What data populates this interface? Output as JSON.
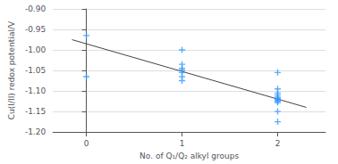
{
  "chart_data": {
    "type": "scatter",
    "xlabel": "No. of Q₁/Q₂ alkyl groups",
    "ylabel": "Cu(I/II) redox potential/V",
    "xlim": [
      -0.35,
      2.5
    ],
    "ylim": [
      -1.2,
      -0.9
    ],
    "xticks": [
      0,
      1,
      2
    ],
    "yticks": [
      {
        "value": -1.2,
        "label": "-1.20"
      },
      {
        "value": -1.15,
        "label": "-1.15"
      },
      {
        "value": -1.1,
        "label": "-1.10"
      },
      {
        "value": -1.05,
        "label": "-1.05"
      },
      {
        "value": -1.0,
        "label": "-1.00"
      },
      {
        "value": -0.95,
        "label": "-0.95"
      },
      {
        "value": -0.9,
        "label": "-0.90"
      }
    ],
    "grid": "y",
    "series": [
      {
        "type": "scatter",
        "color": "#3399ff",
        "marker": "+",
        "x": [
          0,
          0,
          1,
          1,
          1,
          1,
          1,
          1,
          1,
          2,
          2,
          2,
          2,
          2,
          2,
          2,
          2,
          2,
          2,
          2,
          2
        ],
        "values": [
          -0.965,
          -1.065,
          -1.0,
          -1.035,
          -1.045,
          -1.05,
          -1.055,
          -1.065,
          -1.075,
          -1.055,
          -1.095,
          -1.105,
          -1.11,
          -1.115,
          -1.118,
          -1.12,
          -1.122,
          -1.125,
          -1.128,
          -1.15,
          -1.175
        ]
      },
      {
        "type": "line",
        "color": "#444444",
        "line_style": "solid",
        "x": [
          -0.15,
          2.3
        ],
        "values": [
          -0.975,
          -1.14
        ]
      }
    ]
  }
}
